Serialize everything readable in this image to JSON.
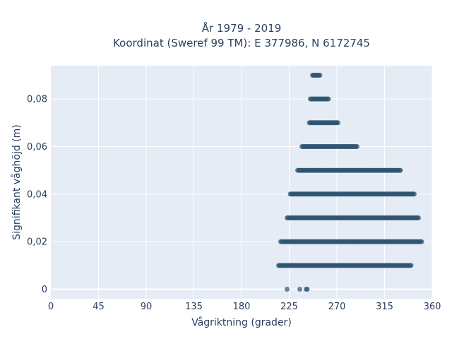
{
  "chart_data": {
    "type": "scatter",
    "title_lines": [
      "År 1979 - 2019",
      "Koordinat (Sweref 99 TM): E 377986, N 6172745"
    ],
    "xlabel": "Vågriktning (grader)",
    "ylabel": "Signifikant våghöjd (m)",
    "xlim": [
      0,
      360
    ],
    "ylim": [
      -0.004,
      0.094
    ],
    "xticks": [
      0,
      45,
      90,
      135,
      180,
      225,
      270,
      315,
      360
    ],
    "xtick_labels": [
      "0",
      "45",
      "90",
      "135",
      "180",
      "225",
      "270",
      "315",
      "360"
    ],
    "yticks": [
      0,
      0.02,
      0.04,
      0.06,
      0.08
    ],
    "ytick_labels": [
      "0",
      "0,02",
      "0,04",
      "0,06",
      "0,08"
    ],
    "grid": true,
    "marker_color": "#2e5570",
    "bands": [
      {
        "y": 0.0,
        "points": [
          223,
          235,
          241,
          242
        ]
      },
      {
        "y": 0.01,
        "x_range": [
          215,
          340
        ]
      },
      {
        "y": 0.02,
        "x_range": [
          217,
          350
        ]
      },
      {
        "y": 0.03,
        "x_range": [
          223,
          347
        ]
      },
      {
        "y": 0.04,
        "x_range": [
          226,
          343
        ]
      },
      {
        "y": 0.05,
        "x_range": [
          233,
          330
        ]
      },
      {
        "y": 0.06,
        "x_range": [
          237,
          289
        ]
      },
      {
        "y": 0.07,
        "x_range": [
          244,
          271
        ]
      },
      {
        "y": 0.08,
        "x_range": [
          245,
          262
        ]
      },
      {
        "y": 0.09,
        "x_range": [
          247,
          254
        ]
      }
    ]
  },
  "colors": {
    "plot_bg": "#e5ecf6",
    "grid": "#ffffff",
    "text": "#2a3f5f"
  }
}
